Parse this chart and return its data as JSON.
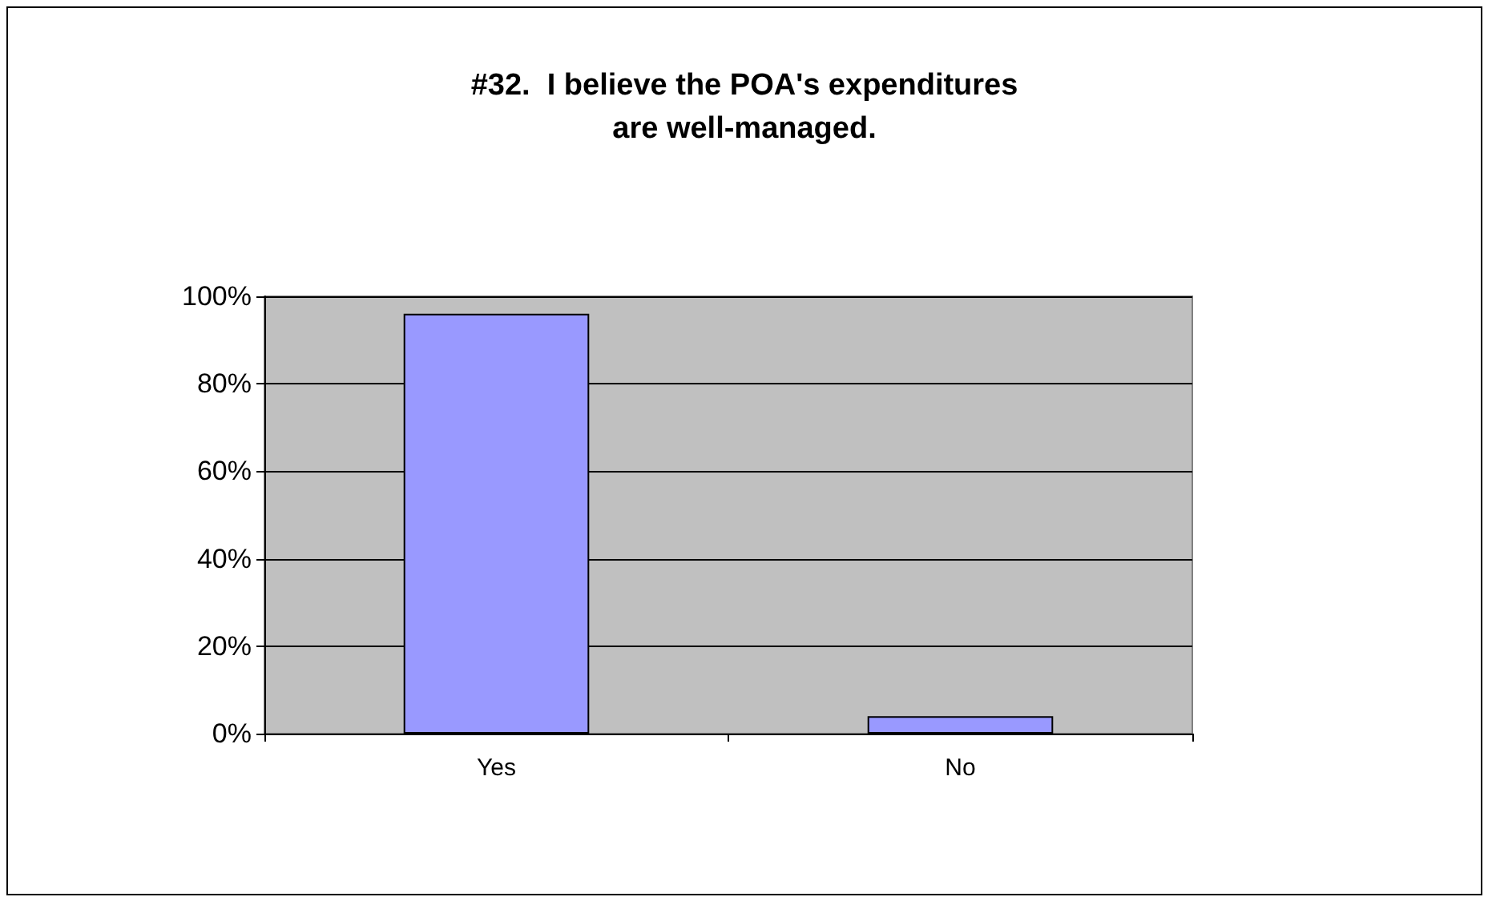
{
  "chart_data": {
    "type": "bar",
    "title": "#32.  I believe the POA's expenditures\nare well-managed.",
    "categories": [
      "Yes",
      "No"
    ],
    "values": [
      96,
      4
    ],
    "color": "#9999ff",
    "ylim": [
      0,
      100
    ],
    "yticks": [
      {
        "value": 0,
        "label": "0%"
      },
      {
        "value": 20,
        "label": "20%"
      },
      {
        "value": 40,
        "label": "40%"
      },
      {
        "value": 60,
        "label": "60%"
      },
      {
        "value": 80,
        "label": "80%"
      },
      {
        "value": 100,
        "label": "100%"
      }
    ],
    "grid": "y"
  }
}
